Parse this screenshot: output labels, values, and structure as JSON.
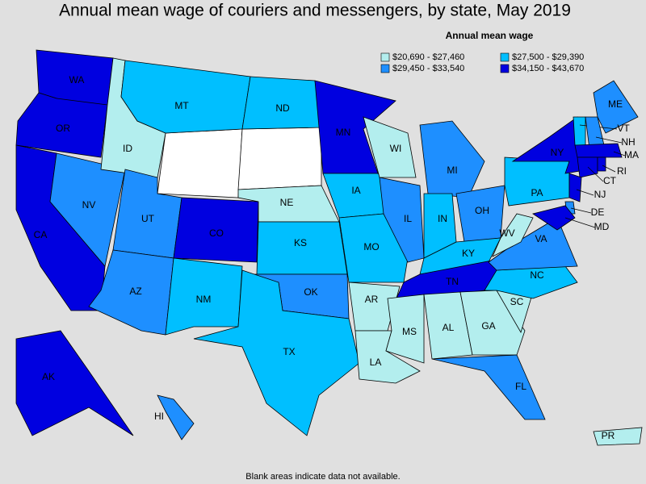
{
  "title": "Annual mean wage of couriers and messengers, by state, May 2019",
  "legend": {
    "title": "Annual mean wage",
    "items": [
      {
        "label": "$20,690 - $27,460",
        "color": "#b3eeee"
      },
      {
        "label": "$27,500 - $29,390",
        "color": "#00bfff"
      },
      {
        "label": "$29,450 - $33,540",
        "color": "#1e8fff"
      },
      {
        "label": "$34,150 - $43,670",
        "color": "#0000e0"
      }
    ]
  },
  "states": [
    {
      "label": "WA",
      "bin": 3
    },
    {
      "label": "OR",
      "bin": 3
    },
    {
      "label": "CA",
      "bin": 3
    },
    {
      "label": "NV",
      "bin": 2
    },
    {
      "label": "ID",
      "bin": 0
    },
    {
      "label": "MT",
      "bin": 1
    },
    {
      "label": "UT",
      "bin": 2
    },
    {
      "label": "AZ",
      "bin": 2
    },
    {
      "label": "CO",
      "bin": 3
    },
    {
      "label": "NM",
      "bin": 1
    },
    {
      "label": "ND",
      "bin": 1
    },
    {
      "label": "NE",
      "bin": 0
    },
    {
      "label": "KS",
      "bin": 1
    },
    {
      "label": "OK",
      "bin": 2
    },
    {
      "label": "TX",
      "bin": 1
    },
    {
      "label": "MN",
      "bin": 3
    },
    {
      "label": "IA",
      "bin": 1
    },
    {
      "label": "MO",
      "bin": 1
    },
    {
      "label": "AR",
      "bin": 0
    },
    {
      "label": "LA",
      "bin": 0
    },
    {
      "label": "WI",
      "bin": 0
    },
    {
      "label": "IL",
      "bin": 2
    },
    {
      "label": "MI",
      "bin": 2
    },
    {
      "label": "IN",
      "bin": 1
    },
    {
      "label": "OH",
      "bin": 2
    },
    {
      "label": "KY",
      "bin": 1
    },
    {
      "label": "TN",
      "bin": 3
    },
    {
      "label": "MS",
      "bin": 0
    },
    {
      "label": "AL",
      "bin": 0
    },
    {
      "label": "GA",
      "bin": 0
    },
    {
      "label": "FL",
      "bin": 2
    },
    {
      "label": "SC",
      "bin": 0
    },
    {
      "label": "NC",
      "bin": 1
    },
    {
      "label": "VA",
      "bin": 2
    },
    {
      "label": "WV",
      "bin": 0
    },
    {
      "label": "PA",
      "bin": 1
    },
    {
      "label": "NY",
      "bin": 3
    },
    {
      "label": "ME",
      "bin": 2
    },
    {
      "label": "VT",
      "bin": 1
    },
    {
      "label": "NH",
      "bin": 2
    },
    {
      "label": "MA",
      "bin": 3
    },
    {
      "label": "CT",
      "bin": 3
    },
    {
      "label": "RI",
      "bin": 3
    },
    {
      "label": "NJ",
      "bin": 3
    },
    {
      "label": "DE",
      "bin": 2
    },
    {
      "label": "MD",
      "bin": 3
    },
    {
      "label": "AK",
      "bin": 3
    },
    {
      "label": "HI",
      "bin": 2
    },
    {
      "label": "PR",
      "bin": 0
    }
  ],
  "footnote": "Blank areas indicate data not available."
}
